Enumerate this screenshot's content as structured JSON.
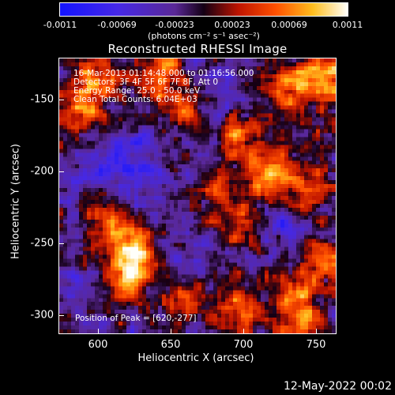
{
  "colorbar": {
    "ticks": [
      "-0.0011",
      "-0.00069",
      "-0.00023",
      "0.00023",
      "0.00069",
      "0.0011"
    ],
    "units": "(photons cm⁻² s⁻¹ asec⁻²)"
  },
  "info": {
    "time": "16-Mar-2013 01:14:48.000 to 01:16:56.000",
    "detectors": "Detectors: 3F 4F 5F 6F 7F 8F, Att 0",
    "energy": "Energy Range: 25.0 - 50.0 keV",
    "clean": "Clean     Total Counts: 6.04E+03",
    "peak": "Position of Peak = [620,-277]"
  },
  "footer": {
    "date": "12-May-2022 00:02"
  },
  "chart_data": {
    "type": "heatmap",
    "title": "Reconstructed RHESSI Image",
    "xlabel": "Heliocentric X (arcsec)",
    "ylabel": "Heliocentric Y (arcsec)",
    "xlim": [
      575,
      766
    ],
    "ylim": [
      -315,
      -125
    ],
    "xticks": [
      600,
      650,
      700,
      750
    ],
    "yticks": [
      -150,
      -200,
      -250,
      -300
    ],
    "zlim": [
      -0.0011,
      0.0011
    ],
    "colormap": "rhessi-hot",
    "colorbar_position": "top",
    "peak": [
      620,
      -277
    ],
    "hot_regions": [
      {
        "x": 620,
        "y": -277,
        "level": 0.00098
      },
      {
        "x": 630,
        "y": -260,
        "level": 0.0008
      },
      {
        "x": 615,
        "y": -245,
        "level": 0.0007
      },
      {
        "x": 605,
        "y": -230,
        "level": 0.00065
      },
      {
        "x": 590,
        "y": -160,
        "level": 0.0007
      },
      {
        "x": 600,
        "y": -140,
        "level": 0.0006
      },
      {
        "x": 645,
        "y": -140,
        "level": 0.0007
      },
      {
        "x": 665,
        "y": -165,
        "level": 0.0006
      },
      {
        "x": 700,
        "y": -175,
        "level": 0.0008
      },
      {
        "x": 735,
        "y": -145,
        "level": 0.0007
      },
      {
        "x": 760,
        "y": -140,
        "level": 0.0009
      },
      {
        "x": 720,
        "y": -205,
        "level": 0.0008
      },
      {
        "x": 745,
        "y": -215,
        "level": 0.0007
      },
      {
        "x": 700,
        "y": -240,
        "level": 0.0006
      },
      {
        "x": 760,
        "y": -265,
        "level": 0.0008
      },
      {
        "x": 740,
        "y": -285,
        "level": 0.0006
      },
      {
        "x": 700,
        "y": -300,
        "level": 0.0007
      },
      {
        "x": 660,
        "y": -290,
        "level": 0.0005
      },
      {
        "x": 740,
        "y": -310,
        "level": 0.0006
      },
      {
        "x": 680,
        "y": -215,
        "level": 0.0005
      }
    ],
    "cold_regions": [
      {
        "x": 630,
        "y": -200,
        "level": -0.0004
      },
      {
        "x": 600,
        "y": -210,
        "level": -0.00035
      },
      {
        "x": 690,
        "y": -160,
        "level": -0.0003
      },
      {
        "x": 735,
        "y": -245,
        "level": -0.0003
      },
      {
        "x": 590,
        "y": -285,
        "level": -0.0003
      },
      {
        "x": 670,
        "y": -255,
        "level": -0.00025
      }
    ]
  }
}
